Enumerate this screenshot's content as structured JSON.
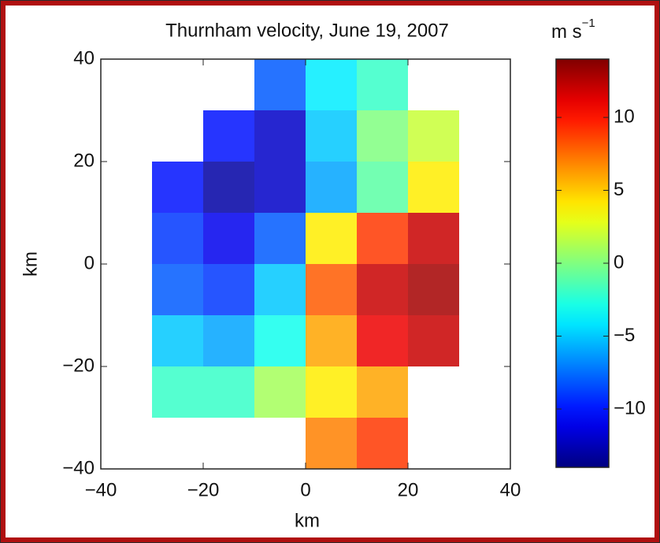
{
  "chart_data": {
    "type": "heatmap",
    "title": "Thurnham velocity, June 19, 2007",
    "xlabel": "km",
    "ylabel": "km",
    "colorbar_label": {
      "base": "m s",
      "exp": "−1"
    },
    "x": [
      -35,
      -25,
      -15,
      -5,
      5,
      15,
      25,
      35
    ],
    "y": [
      35,
      25,
      15,
      5,
      -5,
      -15,
      -25,
      -35
    ],
    "values": [
      [
        null,
        null,
        null,
        -8,
        -4,
        -2,
        null,
        null
      ],
      [
        null,
        null,
        -10,
        -12,
        -5,
        0,
        2,
        null
      ],
      [
        null,
        -10,
        -13,
        -12,
        -6,
        -1,
        4,
        null
      ],
      [
        null,
        -9,
        -11,
        -8,
        4,
        9,
        12,
        null
      ],
      [
        null,
        -8,
        -9,
        -5,
        8,
        12,
        13,
        null
      ],
      [
        null,
        -5,
        -6,
        -3,
        6,
        11,
        12,
        null
      ],
      [
        null,
        -2,
        -2,
        1,
        4,
        6,
        null,
        null
      ],
      [
        null,
        null,
        null,
        null,
        7,
        9,
        null,
        null
      ]
    ],
    "xlim": [
      -40,
      40
    ],
    "ylim": [
      -40,
      40
    ],
    "xticks": [
      {
        "value": -40,
        "label": "−40"
      },
      {
        "value": -20,
        "label": "−20"
      },
      0,
      20,
      40
    ],
    "yticks": [
      {
        "value": -40,
        "label": "−40"
      },
      {
        "value": -20,
        "label": "−20"
      },
      0,
      20,
      40
    ],
    "clim": [
      -14,
      14
    ],
    "cticks": [
      {
        "value": -10,
        "label": "−10"
      },
      {
        "value": -5,
        "label": "−5"
      },
      0,
      5,
      10
    ],
    "colormap": "jet"
  }
}
